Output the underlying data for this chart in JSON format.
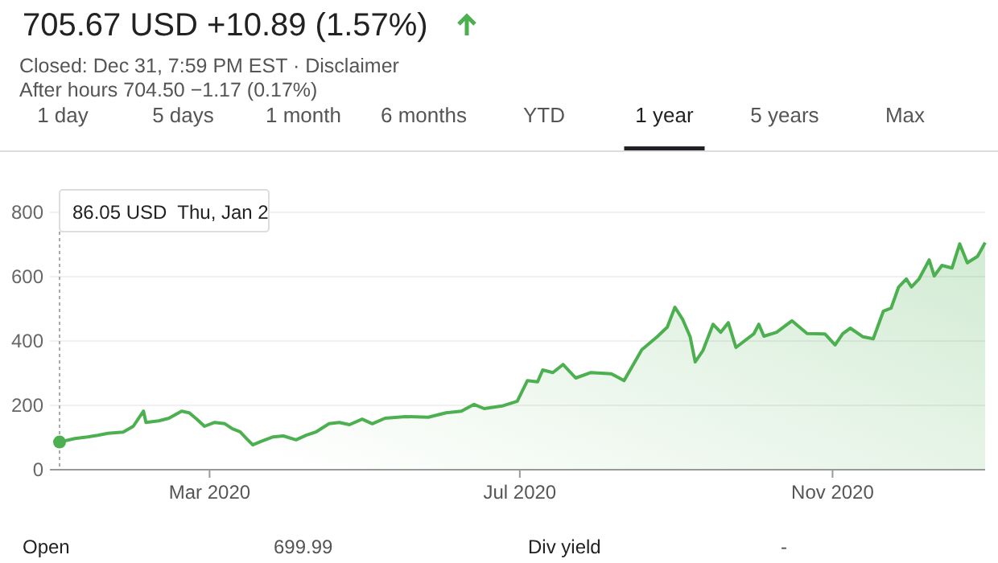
{
  "chart_data": {
    "type": "area",
    "title": "705.67 USD +10.89 (1.57%)",
    "annotations": [
      "Closed: Dec 31, 7:59 PM EST · Disclaimer",
      "After hours 704.50 −1.17 (0.17%)",
      "1 day",
      "5 days",
      "1 month",
      "6 months",
      "YTD",
      "1 year",
      "5 years",
      "Max",
      "86.05 USD  Thu, Jan 2",
      "Open",
      "699.99",
      "Div yield",
      "-"
    ],
    "xlim": [
      "2020-01-02",
      "2020-12-31"
    ],
    "xticks": [
      {
        "value": "2020-03-01",
        "label": "Mar 2020"
      },
      {
        "value": "2020-07-01",
        "label": "Jul 2020"
      },
      {
        "value": "2020-11-01",
        "label": "Nov 2020"
      }
    ],
    "ylim": [
      0,
      800
    ],
    "yticks": [
      0,
      200,
      400,
      600,
      800
    ],
    "grid": "y",
    "marker": "none",
    "line_style": "solid",
    "series": [
      {
        "color": "#4caf50",
        "x": [
          "2020-01-02",
          "2020-01-08",
          "2020-01-13",
          "2020-01-17",
          "2020-01-21",
          "2020-01-27",
          "2020-01-31",
          "2020-02-04",
          "2020-02-05",
          "2020-02-10",
          "2020-02-14",
          "2020-02-19",
          "2020-02-22",
          "2020-02-25",
          "2020-02-28",
          "2020-03-03",
          "2020-03-07",
          "2020-03-10",
          "2020-03-13",
          "2020-03-16",
          "2020-03-18",
          "2020-03-21",
          "2020-03-26",
          "2020-03-30",
          "2020-04-04",
          "2020-04-08",
          "2020-04-12",
          "2020-04-17",
          "2020-04-21",
          "2020-04-25",
          "2020-04-30",
          "2020-05-04",
          "2020-05-09",
          "2020-05-17",
          "2020-05-26",
          "2020-06-02",
          "2020-06-08",
          "2020-06-13",
          "2020-06-17",
          "2020-06-24",
          "2020-06-30",
          "2020-07-04",
          "2020-07-08",
          "2020-07-10",
          "2020-07-14",
          "2020-07-18",
          "2020-07-23",
          "2020-07-29",
          "2020-08-06",
          "2020-08-11",
          "2020-08-14",
          "2020-08-18",
          "2020-08-24",
          "2020-08-28",
          "2020-08-31",
          "2020-09-03",
          "2020-09-06",
          "2020-09-08",
          "2020-09-11",
          "2020-09-15",
          "2020-09-18",
          "2020-09-21",
          "2020-09-24",
          "2020-10-01",
          "2020-10-03",
          "2020-10-05",
          "2020-10-10",
          "2020-10-16",
          "2020-10-22",
          "2020-10-29",
          "2020-11-02",
          "2020-11-05",
          "2020-11-08",
          "2020-11-13",
          "2020-11-17",
          "2020-11-21",
          "2020-11-24",
          "2020-11-27",
          "2020-11-30",
          "2020-12-02",
          "2020-12-05",
          "2020-12-09",
          "2020-12-11",
          "2020-12-14",
          "2020-12-18",
          "2020-12-21",
          "2020-12-24",
          "2020-12-28",
          "2020-12-29",
          "2020-12-31"
        ],
        "values": [
          86,
          97,
          102,
          107,
          113,
          117,
          135,
          182,
          147,
          152,
          160,
          182,
          177,
          157,
          135,
          147,
          143,
          127,
          118,
          93,
          77,
          87,
          102,
          105,
          93,
          107,
          118,
          143,
          147,
          140,
          157,
          143,
          160,
          165,
          163,
          177,
          182,
          203,
          190,
          198,
          213,
          277,
          273,
          310,
          302,
          327,
          285,
          302,
          298,
          277,
          318,
          373,
          413,
          443,
          505,
          468,
          413,
          335,
          370,
          452,
          427,
          457,
          380,
          422,
          452,
          415,
          427,
          463,
          423,
          422,
          388,
          423,
          440,
          413,
          407,
          493,
          502,
          568,
          593,
          568,
          593,
          652,
          602,
          635,
          627,
          702,
          643,
          663,
          677,
          706
        ]
      }
    ]
  }
}
